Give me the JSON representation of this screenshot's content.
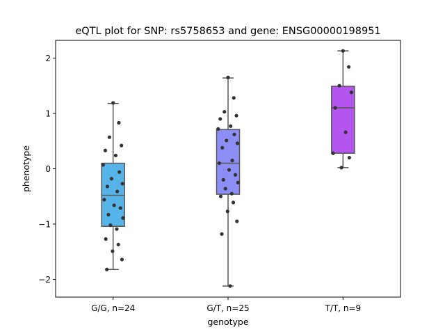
{
  "chart_data": {
    "type": "box",
    "title": "eQTL plot for SNP: rs5758653 and gene: ENSG00000198951",
    "xlabel": "genotype",
    "ylabel": "phenotype",
    "ylim": [
      -2.32,
      2.32
    ],
    "yticks": [
      -2,
      -1,
      0,
      1,
      2
    ],
    "ytick_labels": [
      "−2",
      "−1",
      "0",
      "1",
      "2"
    ],
    "grid": false,
    "categories": [
      "G/G, n=24",
      "G/T, n=25",
      "T/T, n=9"
    ],
    "boxes": [
      {
        "category": "G/G, n=24",
        "color": "#56b4e9",
        "whisker_low": -1.82,
        "q1": -1.04,
        "median": -0.48,
        "q3": 0.1,
        "whisker_high": 1.18,
        "points": [
          1.19,
          0.83,
          0.57,
          0.42,
          0.33,
          0.24,
          0.07,
          -0.06,
          -0.18,
          -0.27,
          -0.32,
          -0.41,
          -0.56,
          -0.66,
          -0.71,
          -0.83,
          -0.89,
          -1.02,
          -1.09,
          -1.27,
          -1.37,
          -1.49,
          -1.64,
          -1.82
        ]
      },
      {
        "category": "G/T, n=25",
        "color": "#8d8ef5",
        "whisker_low": -2.12,
        "q1": -0.46,
        "median": 0.1,
        "q3": 0.71,
        "whisker_high": 1.64,
        "points": [
          1.65,
          1.28,
          1.03,
          0.96,
          0.9,
          0.77,
          0.72,
          0.62,
          0.51,
          0.46,
          0.38,
          0.15,
          0.1,
          -0.02,
          -0.11,
          -0.2,
          -0.25,
          -0.36,
          -0.45,
          -0.5,
          -0.61,
          -0.77,
          -0.95,
          -1.18,
          -2.12
        ]
      },
      {
        "category": "T/T, n=9",
        "color": "#b455ef",
        "whisker_low": 0.02,
        "q1": 0.28,
        "median": 1.1,
        "q3": 1.49,
        "whisker_high": 2.13,
        "points": [
          2.13,
          1.84,
          1.5,
          1.38,
          1.1,
          0.66,
          0.28,
          0.2,
          0.02
        ]
      }
    ]
  }
}
